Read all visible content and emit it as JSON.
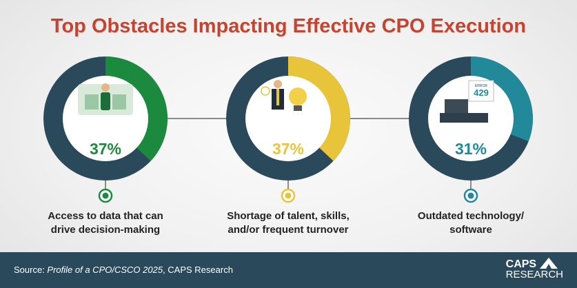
{
  "title": "Top Obstacles Impacting Effective CPO Execution",
  "chart_data": {
    "type": "donut",
    "title": "Top Obstacles Impacting Effective CPO Execution",
    "unit": "%",
    "items": [
      {
        "label_line1": "Access to data that can",
        "label_line2": "drive decision-making",
        "value": 37,
        "display": "37%",
        "color": "#1b8a3e",
        "icon": "data-dashboard-person-icon"
      },
      {
        "label_line1": "Shortage of talent, skills,",
        "label_line2": "and/or frequent turnover",
        "value": 37,
        "display": "37%",
        "color": "#e8c43b",
        "icon": "confused-person-lightbulb-icon"
      },
      {
        "label_line1": "Outdated technology/",
        "label_line2": "software",
        "value": 31,
        "display": "31%",
        "color": "#22899a",
        "icon": "broken-computer-icon",
        "illustration_text": {
          "error": "ERROR",
          "code": "429"
        }
      }
    ],
    "remainder_color": "#2a4a5c"
  },
  "footer": {
    "source_prefix": "Source: ",
    "source_title": "Profile of a CPO/CSCO 2025",
    "source_suffix": ", CAPS Research",
    "logo_line1": "CAPS",
    "logo_line2": "RESEARCH"
  }
}
